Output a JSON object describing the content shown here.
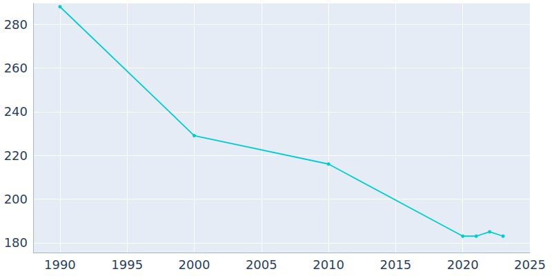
{
  "chart_data": {
    "type": "line",
    "x": [
      1990,
      2000,
      2010,
      2020,
      2021,
      2022,
      2023
    ],
    "values": [
      288,
      229,
      216,
      183,
      183,
      185,
      183
    ],
    "color": "#00cdd0",
    "marker": "circle",
    "line_style": "solid",
    "xlim": [
      1988,
      2025
    ],
    "xticks": [
      1990,
      1995,
      2000,
      2005,
      2010,
      2015,
      2020,
      2025
    ],
    "ylim": [
      175.5,
      289.5
    ],
    "yticks": [
      180,
      200,
      220,
      240,
      260,
      280
    ],
    "grid": true
  }
}
